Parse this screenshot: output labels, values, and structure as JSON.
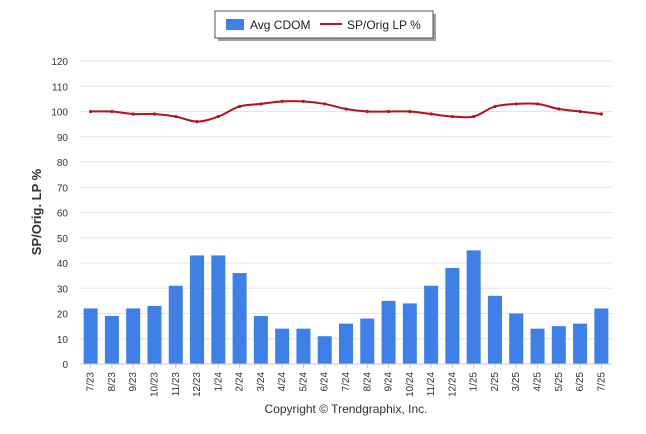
{
  "chart_data": {
    "type": "bar",
    "ylabel": "SP/Orig. LP %",
    "ylim": [
      0,
      120
    ],
    "yticks": [
      0,
      10,
      20,
      30,
      40,
      50,
      60,
      70,
      80,
      90,
      100,
      110,
      120
    ],
    "grid": true,
    "legend_position": "top-center",
    "categories": [
      "7/23",
      "8/23",
      "9/23",
      "10/23",
      "11/23",
      "12/23",
      "1/24",
      "2/24",
      "3/24",
      "4/24",
      "5/24",
      "6/24",
      "7/24",
      "8/24",
      "9/24",
      "10/24",
      "11/24",
      "12/24",
      "1/25",
      "2/25",
      "3/25",
      "4/25",
      "5/25",
      "6/25",
      "7/25"
    ],
    "series": [
      {
        "name": "Avg CDOM",
        "type": "bar",
        "color": "#3f7fe8",
        "values": [
          22,
          19,
          22,
          23,
          31,
          43,
          43,
          36,
          19,
          14,
          14,
          11,
          16,
          18,
          25,
          24,
          31,
          38,
          45,
          27,
          20,
          14,
          15,
          16,
          22
        ]
      },
      {
        "name": "SP/Orig LP %",
        "type": "line",
        "color": "#b3141a",
        "values": [
          100,
          100,
          99,
          99,
          98,
          96,
          98,
          102,
          103,
          104,
          104,
          103,
          101,
          100,
          100,
          100,
          99,
          98,
          98,
          102,
          103,
          103,
          101,
          100,
          99
        ]
      }
    ]
  },
  "footer": {
    "copyright": "Copyright © Trendgraphix, Inc."
  }
}
